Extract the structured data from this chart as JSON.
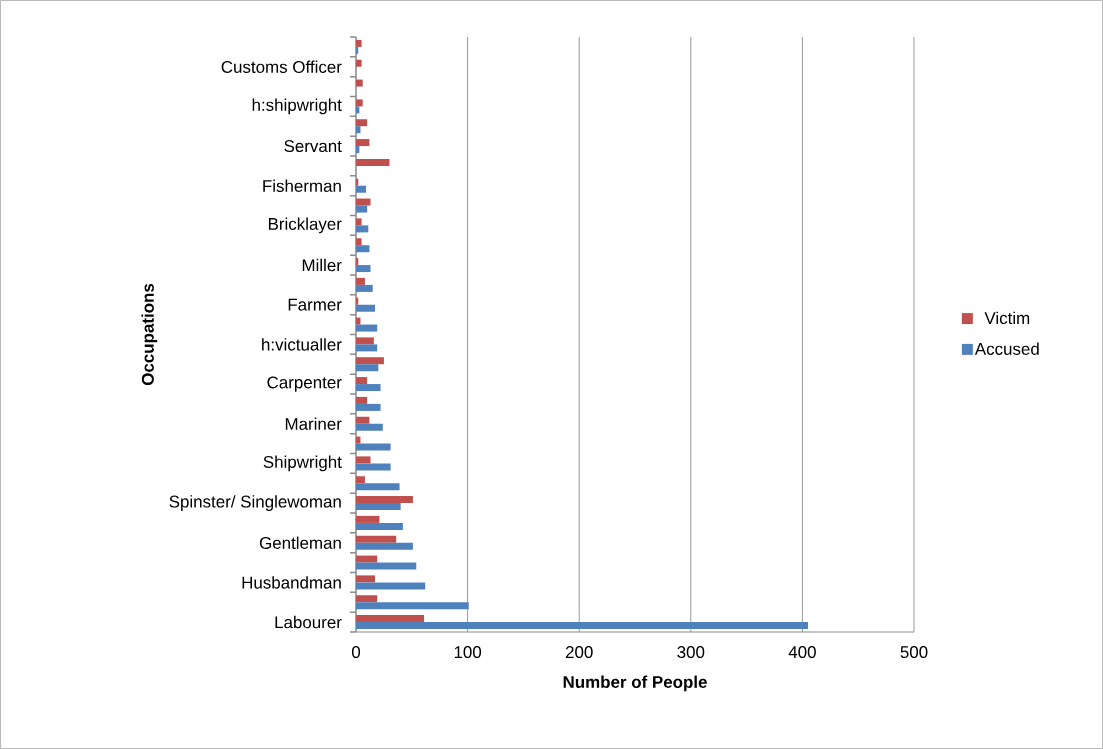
{
  "chart_data": {
    "type": "bar",
    "orientation": "horizontal",
    "xlabel": "Number of People",
    "ylabel": "Occupations",
    "categories": [
      null,
      "Customs Officer",
      null,
      "h:shipwright",
      null,
      "Servant",
      null,
      "Fisherman",
      null,
      "Bricklayer",
      null,
      "Miller",
      null,
      "Farmer",
      null,
      "h:victualler",
      null,
      "Carpenter",
      null,
      "Mariner",
      null,
      "Shipwright",
      null,
      "Spinster/ Singlewoman",
      null,
      "Gentleman",
      null,
      "Husbandman",
      null,
      "Labourer"
    ],
    "series": [
      {
        "name": "Victim",
        "color": "#c0504d",
        "values": [
          5,
          5,
          6,
          6,
          10,
          12,
          30,
          2,
          13,
          5,
          5,
          2,
          8,
          2,
          4,
          16,
          25,
          10,
          10,
          12,
          4,
          13,
          8,
          51,
          21,
          36,
          19,
          17,
          19,
          61
        ]
      },
      {
        "name": "Accused",
        "color": "#4f81bd",
        "values": [
          2,
          0,
          0,
          3,
          4,
          3,
          0,
          9,
          10,
          11,
          12,
          13,
          15,
          17,
          19,
          19,
          20,
          22,
          22,
          24,
          31,
          31,
          39,
          40,
          42,
          51,
          54,
          62,
          101,
          405
        ]
      }
    ],
    "xlim": [
      0,
      500
    ],
    "xticks": [
      0,
      100,
      200,
      300,
      400,
      500
    ],
    "grid": "x",
    "legend": "right"
  }
}
